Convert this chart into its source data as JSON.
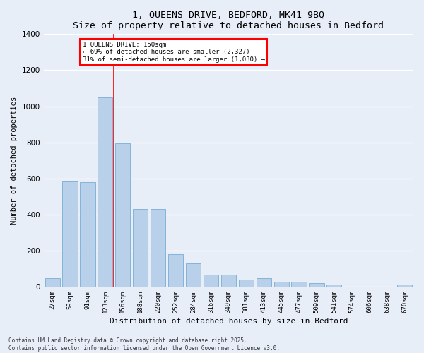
{
  "title": "1, QUEENS DRIVE, BEDFORD, MK41 9BQ",
  "subtitle": "Size of property relative to detached houses in Bedford",
  "xlabel": "Distribution of detached houses by size in Bedford",
  "ylabel": "Number of detached properties",
  "categories": [
    "27sqm",
    "59sqm",
    "91sqm",
    "123sqm",
    "156sqm",
    "188sqm",
    "220sqm",
    "252sqm",
    "284sqm",
    "316sqm",
    "349sqm",
    "381sqm",
    "413sqm",
    "445sqm",
    "477sqm",
    "509sqm",
    "541sqm",
    "574sqm",
    "606sqm",
    "638sqm",
    "670sqm"
  ],
  "values": [
    45,
    585,
    580,
    1048,
    793,
    430,
    430,
    178,
    130,
    68,
    67,
    40,
    45,
    28,
    28,
    20,
    10,
    0,
    0,
    0,
    10
  ],
  "bar_color": "#b8d0ea",
  "bar_edge_color": "#7aadd4",
  "background_color": "#e8eef8",
  "fig_background_color": "#e8eef8",
  "grid_color": "#ffffff",
  "red_line_index": 3.5,
  "annotation_box_text": "1 QUEENS DRIVE: 150sqm\n← 69% of detached houses are smaller (2,327)\n31% of semi-detached houses are larger (1,030) →",
  "footnote": "Contains HM Land Registry data © Crown copyright and database right 2025.\nContains public sector information licensed under the Open Government Licence v3.0.",
  "ylim": [
    0,
    1400
  ],
  "yticks": [
    0,
    200,
    400,
    600,
    800,
    1000,
    1200,
    1400
  ]
}
